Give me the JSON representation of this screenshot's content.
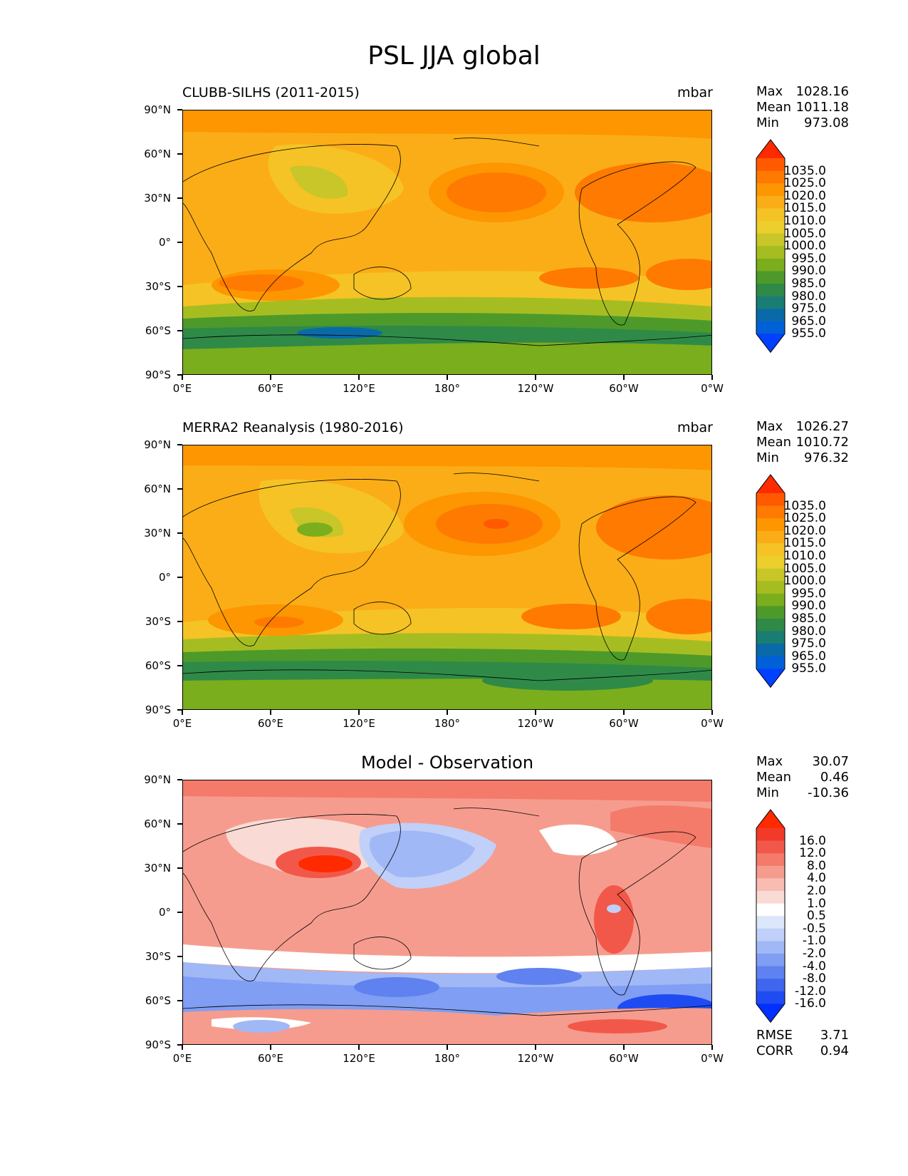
{
  "figure": {
    "title": "PSL JJA global"
  },
  "axes": {
    "lat_ticks": [
      "90°N",
      "60°N",
      "30°N",
      "0°",
      "30°S",
      "60°S",
      "90°S"
    ],
    "lon_ticks": [
      "0°E",
      "60°E",
      "120°E",
      "180°",
      "120°W",
      "60°W",
      "0°W"
    ]
  },
  "panels": [
    {
      "title": "CLUBB-SILHS (2011-2015)",
      "units": "mbar",
      "stats": [
        {
          "label": "Max",
          "value": "1028.16"
        },
        {
          "label": "Mean",
          "value": "1011.18"
        },
        {
          "label": "Min",
          "value": "973.08"
        }
      ],
      "colorbar": {
        "labels": [
          "1035.0",
          "1025.0",
          "1020.0",
          "1015.0",
          "1010.0",
          "1005.0",
          "1000.0",
          "995.0",
          "990.0",
          "985.0",
          "980.0",
          "975.0",
          "965.0",
          "955.0"
        ],
        "colors": [
          "#ff2a00",
          "#ff5a00",
          "#ff7a00",
          "#fd9600",
          "#fbad17",
          "#f5c325",
          "#eccf2c",
          "#c8c628",
          "#a6bd22",
          "#7aae1c",
          "#4d9a2a",
          "#2f8a48",
          "#1a7d74",
          "#0a6aa8",
          "#0060d8",
          "#0040ff"
        ]
      }
    },
    {
      "title": "MERRA2 Reanalysis (1980-2016)",
      "units": "mbar",
      "stats": [
        {
          "label": "Max",
          "value": "1026.27"
        },
        {
          "label": "Mean",
          "value": "1010.72"
        },
        {
          "label": "Min",
          "value": "976.32"
        }
      ],
      "colorbar": {
        "labels": [
          "1035.0",
          "1025.0",
          "1020.0",
          "1015.0",
          "1010.0",
          "1005.0",
          "1000.0",
          "995.0",
          "990.0",
          "985.0",
          "980.0",
          "975.0",
          "965.0",
          "955.0"
        ],
        "colors": [
          "#ff2a00",
          "#ff5a00",
          "#ff7a00",
          "#fd9600",
          "#fbad17",
          "#f5c325",
          "#eccf2c",
          "#c8c628",
          "#a6bd22",
          "#7aae1c",
          "#4d9a2a",
          "#2f8a48",
          "#1a7d74",
          "#0a6aa8",
          "#0060d8",
          "#0040ff"
        ]
      }
    },
    {
      "title": "Model - Observation",
      "units": "",
      "stats": [
        {
          "label": "Max",
          "value": "30.07"
        },
        {
          "label": "Mean",
          "value": "0.46"
        },
        {
          "label": "Min",
          "value": "-10.36"
        }
      ],
      "extra_stats": [
        {
          "label": "RMSE",
          "value": "3.71"
        },
        {
          "label": "CORR",
          "value": "0.94"
        }
      ],
      "colorbar": {
        "labels": [
          "16.0",
          "12.0",
          "8.0",
          "4.0",
          "2.0",
          "1.0",
          "0.5",
          "-0.5",
          "-1.0",
          "-2.0",
          "-4.0",
          "-8.0",
          "-12.0",
          "-16.0"
        ],
        "colors": [
          "#ff2a00",
          "#f23a2a",
          "#f2584a",
          "#f47a6a",
          "#f69c8e",
          "#f8bcb2",
          "#fadad4",
          "#ffffff",
          "#dce6fb",
          "#c0d0f8",
          "#a0b8f6",
          "#809ef3",
          "#5f82f0",
          "#3f66ee",
          "#1f4cf2",
          "#0030ff"
        ]
      }
    }
  ]
}
